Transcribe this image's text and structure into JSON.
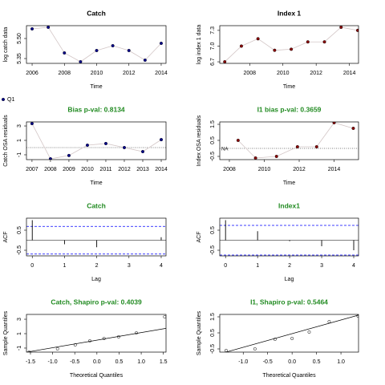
{
  "legend": {
    "label": "Q1",
    "color": "#00008b"
  },
  "chart_data": [
    {
      "type": "line",
      "title": "Catch",
      "title_color": "#000000",
      "xlabel": "Time",
      "ylabel": "log catch data",
      "x": [
        2006,
        2007,
        2008,
        2009,
        2010,
        2011,
        2012,
        2013,
        2014
      ],
      "values": [
        5.572,
        5.584,
        5.392,
        5.326,
        5.41,
        5.446,
        5.41,
        5.338,
        5.464
      ],
      "color": "#00008b",
      "line_color": "#d3c6c6",
      "xlim": [
        2005.65,
        2014.3
      ],
      "ylim": [
        5.314,
        5.596
      ],
      "xticks": [
        2006,
        2008,
        2010,
        2012,
        2014
      ],
      "yticks": [
        5.35,
        {
          "value": 5.5,
          "label": "5.50"
        }
      ]
    },
    {
      "type": "line",
      "title": "Index 1",
      "title_color": "#000000",
      "xlabel": "Time",
      "ylabel": "log index 1 data",
      "x": [
        2006.5,
        2007.5,
        2008.5,
        2009.5,
        2010.5,
        2011.5,
        2012.5,
        2013.5,
        2014.5
      ],
      "values": [
        6.7,
        7.0,
        7.14,
        6.92,
        6.94,
        7.08,
        7.08,
        7.36,
        7.3
      ],
      "color": "#8b0000",
      "line_color": "#d3c6c6",
      "xlim": [
        2006.2,
        2014.55
      ],
      "ylim": [
        6.67,
        7.39
      ],
      "xticks": [
        2008,
        2010,
        2012,
        2014
      ],
      "yticks": [
        6.7,
        {
          "value": 7,
          "label": "7.0"
        },
        7.3
      ]
    },
    {
      "type": "line",
      "title": "Bias p-val: 0.8134",
      "title_color": "#228b22",
      "xlabel": "Time",
      "ylabel": "Catch OSA residuals",
      "x": [
        2007,
        2008,
        2009,
        2010,
        2011,
        2012,
        2013,
        2014
      ],
      "values": [
        3.33,
        -1.56,
        -1.1,
        0.33,
        0.56,
        0,
        -0.56,
        1.1
      ],
      "color": "#00008b",
      "line_color": "#d3c6c6",
      "hline": 0,
      "xlim": [
        2006.7,
        2014.26
      ],
      "ylim": [
        -1.67,
        3.56
      ],
      "xticks": [
        2007,
        2008,
        2009,
        2010,
        2011,
        2012,
        2013,
        2014
      ],
      "yticks": [
        -1,
        1,
        3
      ]
    },
    {
      "type": "line",
      "title": "I1 bias p-val: 0.3659",
      "title_color": "#228b22",
      "xlabel": "Time",
      "ylabel": "Index OSA residuals",
      "x": [
        2008.5,
        2009.5,
        2010.7,
        2011.9,
        2013,
        2014,
        2015.1
      ],
      "values": [
        0.5,
        -0.6,
        -0.5,
        0.1,
        0.1,
        1.6,
        1.25
      ],
      "color": "#8b0000",
      "line_color": "#d3c6c6",
      "hline": 0,
      "na_label": "NA",
      "xlim": [
        2007.45,
        2015.4
      ],
      "ylim": [
        -0.7,
        1.65
      ],
      "xticks": [
        2008,
        2010,
        2012,
        2014
      ],
      "yticks": [
        -0.5,
        0.5,
        1.5
      ]
    },
    {
      "type": "acf",
      "title": "Catch",
      "title_color": "#228b22",
      "xlabel": "Lag",
      "ylabel": "ACF",
      "x": [
        0,
        1,
        2,
        3,
        4
      ],
      "values": [
        1,
        -0.2,
        -0.35,
        0,
        0.15
      ],
      "color": "#000000",
      "ci": [
        0.69,
        -0.69
      ],
      "ci_color": "#0000ff",
      "xlim": [
        -0.18,
        4.15
      ],
      "ylim": [
        -0.78,
        1.1
      ],
      "xticks": [
        0,
        1,
        2,
        3,
        4
      ],
      "yticks": [
        -0.5,
        0.5
      ]
    },
    {
      "type": "acf",
      "title": "Index1",
      "title_color": "#228b22",
      "xlabel": "Lag",
      "ylabel": "ACF",
      "x": [
        0,
        1,
        2,
        3,
        4
      ],
      "values": [
        1,
        0.45,
        -0.05,
        -0.3,
        -0.5
      ],
      "color": "#000000",
      "ci": [
        0.74,
        -0.74
      ],
      "ci_color": "#0000ff",
      "xlim": [
        -0.18,
        4.15
      ],
      "ylim": [
        -0.78,
        1.1
      ],
      "xticks": [
        0,
        1,
        2,
        3,
        4
      ],
      "yticks": [
        -0.5,
        0.5
      ]
    },
    {
      "type": "qq",
      "title": "Catch, Shapiro p-val: 0.4039",
      "title_color": "#228b22",
      "xlabel": "Theoretical Quantiles",
      "ylabel": "Sample Quantiles",
      "x": [
        -1.53,
        -0.89,
        -0.49,
        -0.16,
        0.16,
        0.49,
        0.89,
        1.53
      ],
      "values": [
        -1.56,
        -1.1,
        -0.56,
        0,
        0.33,
        0.56,
        1.1,
        3.33
      ],
      "color": "#000000",
      "qqline": {
        "intercept": 0.1,
        "slope": 1.05
      },
      "xlim": [
        -1.59,
        1.56
      ],
      "ylim": [
        -1.56,
        3.67
      ],
      "xticks": [
        -1.5,
        {
          "value": -1,
          "label": "-1.0"
        },
        -0.5,
        {
          "value": 0,
          "label": "0.0"
        },
        0.5,
        {
          "value": 1,
          "label": "1.0"
        },
        1.5
      ],
      "yticks": [
        -1,
        1,
        3
      ]
    },
    {
      "type": "qq",
      "title": "I1, Shapiro p-val: 0.5464",
      "title_color": "#228b22",
      "xlabel": "Theoretical Quantiles",
      "ylabel": "Sample Quantiles",
      "x": [
        -1.35,
        -0.76,
        -0.35,
        0,
        0.35,
        0.76,
        1.35
      ],
      "values": [
        -0.6,
        -0.5,
        0.1,
        0.15,
        0.55,
        1.2,
        1.55
      ],
      "color": "#000000",
      "qqline": {
        "intercept": 0.45,
        "slope": 0.85
      },
      "xlim": [
        -1.48,
        1.36
      ],
      "ylim": [
        -0.7,
        1.65
      ],
      "xticks": [
        {
          "value": -1,
          "label": "-1.0"
        },
        -0.5,
        {
          "value": 0,
          "label": "0.0"
        },
        0.5,
        {
          "value": 1,
          "label": "1.0"
        }
      ],
      "yticks": [
        -0.5,
        0.5,
        1.5
      ]
    }
  ]
}
